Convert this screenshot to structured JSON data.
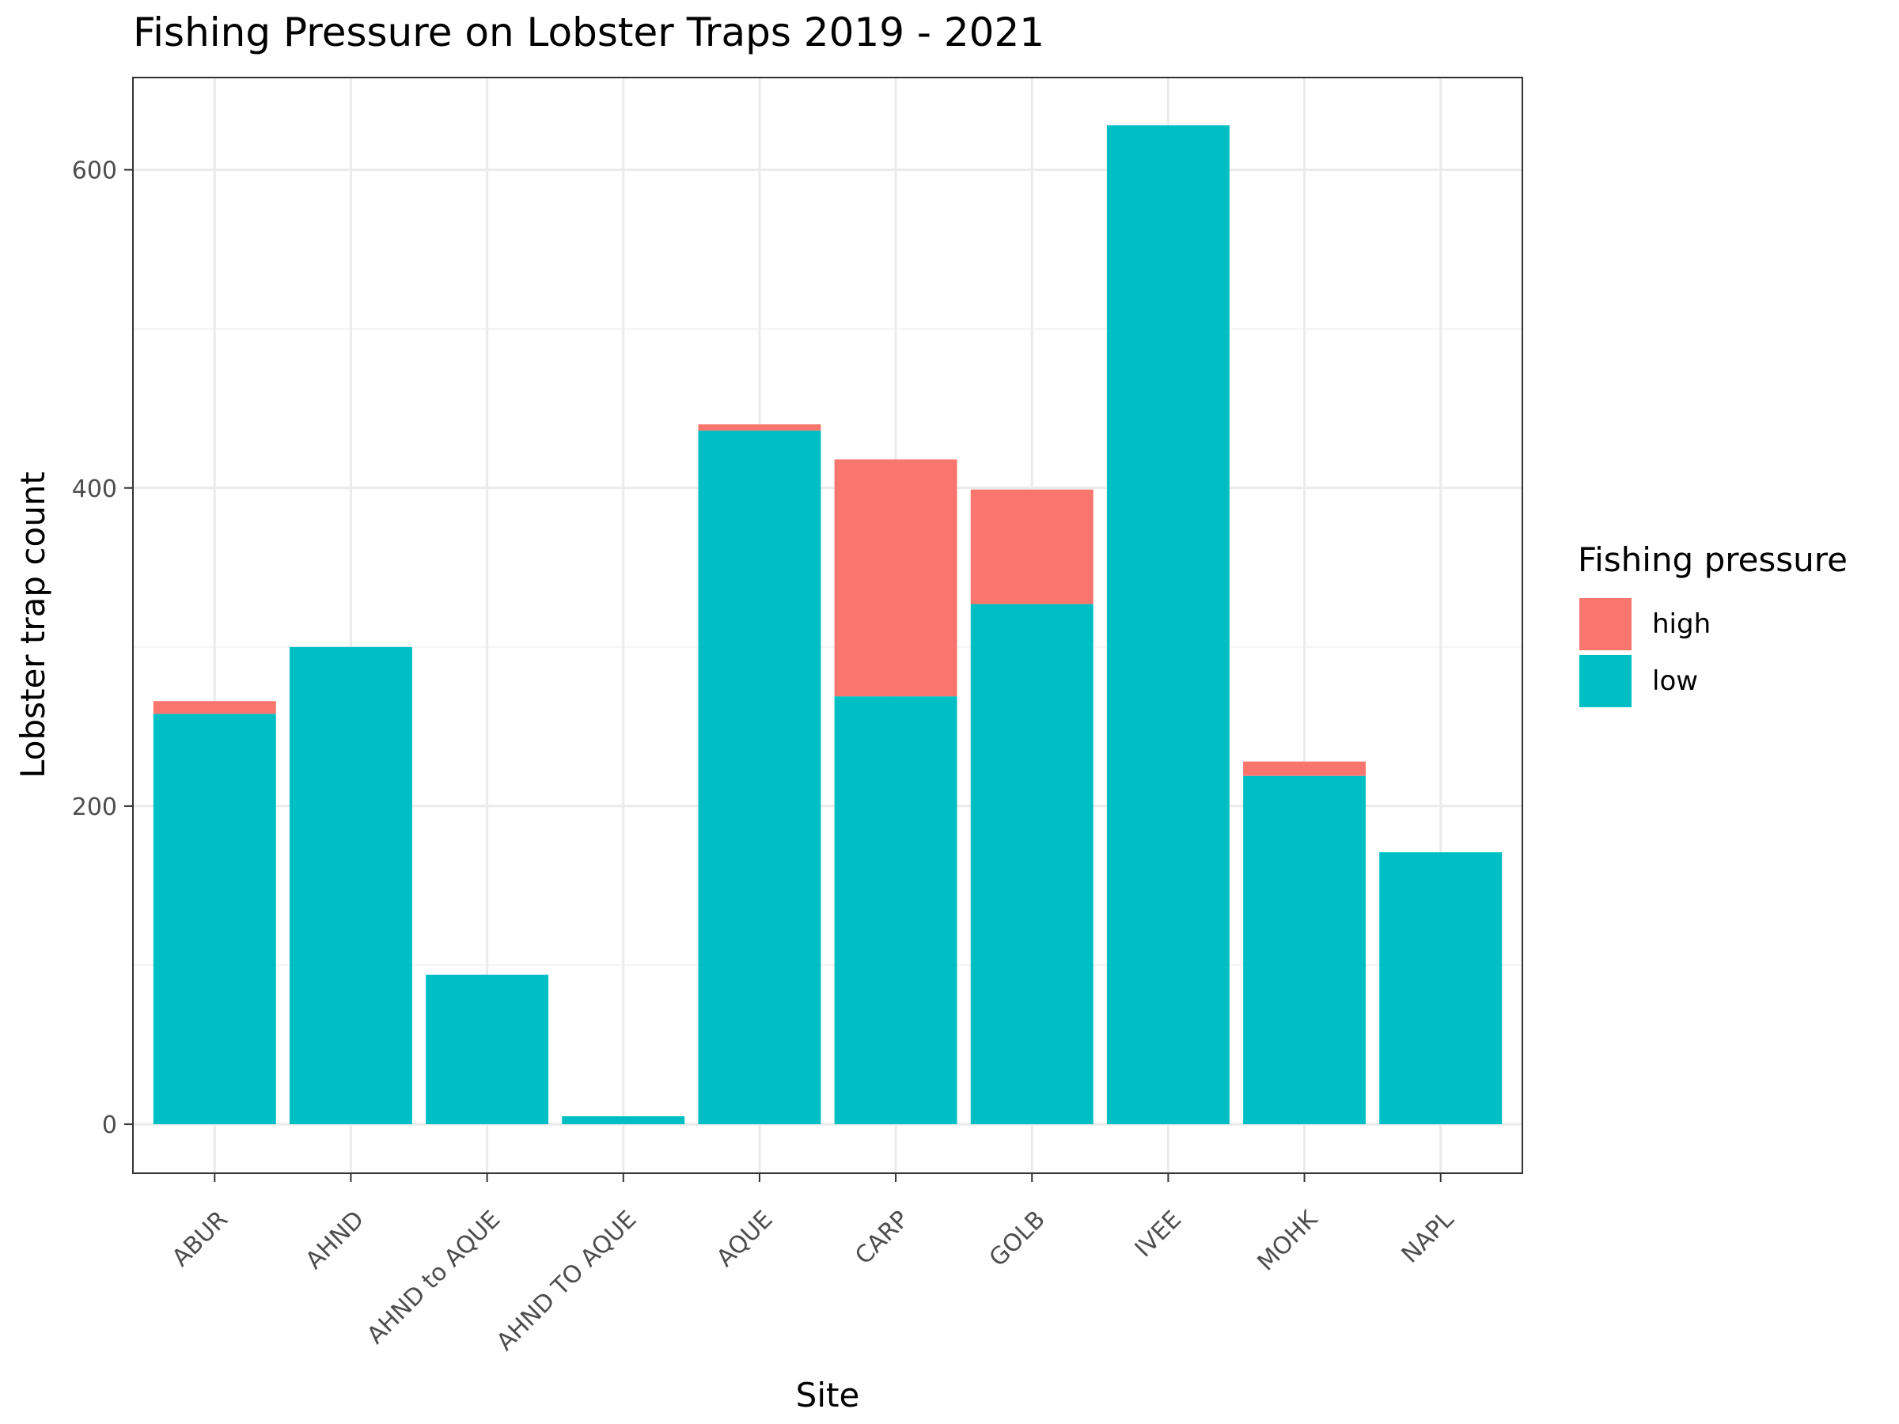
{
  "chart_data": {
    "type": "bar",
    "stacked": true,
    "title": "Fishing Pressure on Lobster Traps 2019 - 2021",
    "xlabel": "Site",
    "ylabel": "Lobster trap count",
    "categories": [
      "ABUR",
      "AHND",
      "AHND to AQUE",
      "AHND TO AQUE",
      "AQUE",
      "CARP",
      "GOLB",
      "IVEE",
      "MOHK",
      "NAPL"
    ],
    "series": [
      {
        "name": "low",
        "color": "#00BFC4",
        "values": [
          258,
          300,
          94,
          5,
          436,
          269,
          327,
          628,
          219,
          171
        ]
      },
      {
        "name": "high",
        "color": "#F8766D",
        "values": [
          8,
          0,
          0,
          0,
          4,
          149,
          72,
          0,
          9,
          0
        ]
      }
    ],
    "yticks": [
      0,
      200,
      400,
      600
    ],
    "ylim": [
      -30.8,
      658
    ],
    "grid": true,
    "legend": {
      "title": "Fishing pressure",
      "position": "right",
      "entries": [
        {
          "label": "high",
          "color": "#F8766D"
        },
        {
          "label": "low",
          "color": "#00BFC4"
        }
      ]
    }
  }
}
